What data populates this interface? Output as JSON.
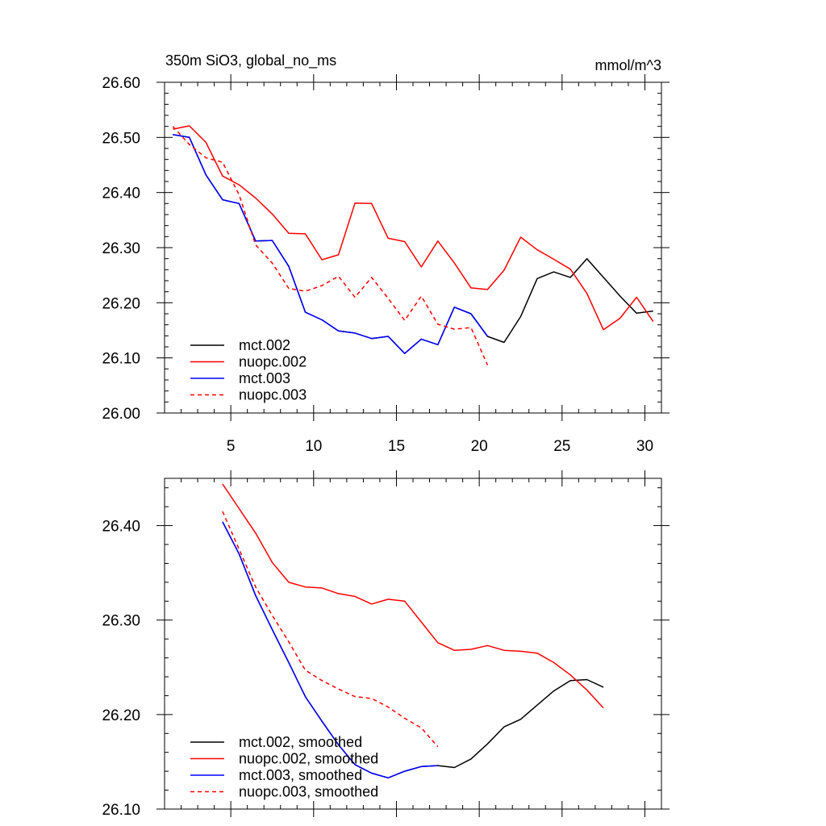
{
  "chart_data": [
    {
      "type": "line",
      "title": "350m SiO3, global_no_ms",
      "units": "mmol/m^3",
      "xlim": [
        1,
        31
      ],
      "ylim": [
        26.0,
        26.6
      ],
      "yticks": [
        "26.00",
        "26.10",
        "26.20",
        "26.30",
        "26.40",
        "26.50",
        "26.60"
      ],
      "xticks": [
        "5",
        "10",
        "15",
        "20",
        "25",
        "30"
      ],
      "legend_position": "bottom-left",
      "series": [
        {
          "name": "mct.002",
          "color": "#000000",
          "dash": "solid",
          "points": [
            [
              1.5,
              26.505
            ],
            [
              2.5,
              26.5
            ],
            [
              3.5,
              26.432
            ],
            [
              4.5,
              26.387
            ],
            [
              5.5,
              26.38
            ],
            [
              6.5,
              26.312
            ],
            [
              7.5,
              26.313
            ],
            [
              8.5,
              26.266
            ],
            [
              9.5,
              26.183
            ],
            [
              10.5,
              26.169
            ],
            [
              11.5,
              26.149
            ],
            [
              12.5,
              26.145
            ],
            [
              13.5,
              26.135
            ],
            [
              14.5,
              26.139
            ],
            [
              15.5,
              26.108
            ],
            [
              16.5,
              26.134
            ],
            [
              17.5,
              26.124
            ],
            [
              18.5,
              26.192
            ],
            [
              19.5,
              26.18
            ],
            [
              20.5,
              26.139
            ],
            [
              21.5,
              26.128
            ],
            [
              22.5,
              26.175
            ],
            [
              23.5,
              26.244
            ],
            [
              24.5,
              26.256
            ],
            [
              25.5,
              26.246
            ],
            [
              26.5,
              26.28
            ],
            [
              27.5,
              26.246
            ],
            [
              28.5,
              26.212
            ],
            [
              29.5,
              26.181
            ],
            [
              30.5,
              26.185
            ]
          ]
        },
        {
          "name": "nuopc.002",
          "color": "#ff0000",
          "dash": "solid",
          "points": [
            [
              1.5,
              26.515
            ],
            [
              2.5,
              26.521
            ],
            [
              3.5,
              26.491
            ],
            [
              4.5,
              26.43
            ],
            [
              5.5,
              26.414
            ],
            [
              6.5,
              26.39
            ],
            [
              7.5,
              26.361
            ],
            [
              8.5,
              26.326
            ],
            [
              9.5,
              26.325
            ],
            [
              10.5,
              26.278
            ],
            [
              11.5,
              26.287
            ],
            [
              12.5,
              26.381
            ],
            [
              13.5,
              26.38
            ],
            [
              14.5,
              26.317
            ],
            [
              15.5,
              26.311
            ],
            [
              16.5,
              26.265
            ],
            [
              17.5,
              26.312
            ],
            [
              18.5,
              26.272
            ],
            [
              19.5,
              26.227
            ],
            [
              20.5,
              26.224
            ],
            [
              21.5,
              26.259
            ],
            [
              22.5,
              26.319
            ],
            [
              23.5,
              26.296
            ],
            [
              24.5,
              26.279
            ],
            [
              25.5,
              26.261
            ],
            [
              26.5,
              26.217
            ],
            [
              27.5,
              26.151
            ],
            [
              28.5,
              26.172
            ],
            [
              29.5,
              26.21
            ],
            [
              30.5,
              26.166
            ]
          ]
        },
        {
          "name": "mct.003",
          "color": "#0000ff",
          "dash": "solid",
          "points": [
            [
              1.5,
              26.505
            ],
            [
              2.5,
              26.5
            ],
            [
              3.5,
              26.432
            ],
            [
              4.5,
              26.387
            ],
            [
              5.5,
              26.38
            ],
            [
              6.5,
              26.312
            ],
            [
              7.5,
              26.313
            ],
            [
              8.5,
              26.266
            ],
            [
              9.5,
              26.183
            ],
            [
              10.5,
              26.169
            ],
            [
              11.5,
              26.149
            ],
            [
              12.5,
              26.145
            ],
            [
              13.5,
              26.135
            ],
            [
              14.5,
              26.139
            ],
            [
              15.5,
              26.108
            ],
            [
              16.5,
              26.134
            ],
            [
              17.5,
              26.124
            ],
            [
              18.5,
              26.192
            ],
            [
              19.5,
              26.18
            ],
            [
              20.5,
              26.139
            ]
          ]
        },
        {
          "name": "nuopc.003",
          "color": "#ff0000",
          "dash": "dashed",
          "points": [
            [
              1.5,
              26.52
            ],
            [
              2.5,
              26.487
            ],
            [
              3.5,
              26.463
            ],
            [
              4.5,
              26.455
            ],
            [
              5.5,
              26.396
            ],
            [
              6.5,
              26.305
            ],
            [
              7.5,
              26.272
            ],
            [
              8.5,
              26.226
            ],
            [
              9.5,
              26.221
            ],
            [
              10.5,
              26.231
            ],
            [
              11.5,
              26.248
            ],
            [
              12.5,
              26.21
            ],
            [
              13.5,
              26.246
            ],
            [
              14.5,
              26.208
            ],
            [
              15.5,
              26.168
            ],
            [
              16.5,
              26.212
            ],
            [
              17.5,
              26.161
            ],
            [
              18.5,
              26.152
            ],
            [
              19.5,
              26.155
            ],
            [
              20.5,
              26.087
            ]
          ]
        }
      ]
    },
    {
      "type": "line",
      "xlim": [
        1,
        31
      ],
      "ylim": [
        26.1,
        26.45
      ],
      "yticks": [
        "26.10",
        "26.20",
        "26.30",
        "26.40"
      ],
      "legend_position": "bottom-left",
      "series": [
        {
          "name": "mct.002, smoothed",
          "color": "#000000",
          "dash": "solid",
          "points": [
            [
              4.5,
              26.404
            ],
            [
              5.5,
              26.37
            ],
            [
              6.5,
              26.326
            ],
            [
              7.5,
              26.29
            ],
            [
              8.5,
              26.255
            ],
            [
              9.5,
              26.219
            ],
            [
              10.5,
              26.193
            ],
            [
              11.5,
              26.168
            ],
            [
              12.5,
              26.147
            ],
            [
              13.5,
              26.138
            ],
            [
              14.5,
              26.133
            ],
            [
              15.5,
              26.14
            ],
            [
              16.5,
              26.145
            ],
            [
              17.5,
              26.146
            ],
            [
              18.5,
              26.144
            ],
            [
              19.5,
              26.153
            ],
            [
              20.5,
              26.169
            ],
            [
              21.5,
              26.187
            ],
            [
              22.5,
              26.195
            ],
            [
              23.5,
              26.21
            ],
            [
              24.5,
              26.225
            ],
            [
              25.5,
              26.236
            ],
            [
              26.5,
              26.237
            ],
            [
              27.5,
              26.229
            ]
          ]
        },
        {
          "name": "nuopc.002, smoothed",
          "color": "#ff0000",
          "dash": "solid",
          "points": [
            [
              4.5,
              26.444
            ],
            [
              5.5,
              26.418
            ],
            [
              6.5,
              26.392
            ],
            [
              7.5,
              26.361
            ],
            [
              8.5,
              26.34
            ],
            [
              9.5,
              26.335
            ],
            [
              10.5,
              26.334
            ],
            [
              11.5,
              26.328
            ],
            [
              12.5,
              26.325
            ],
            [
              13.5,
              26.317
            ],
            [
              14.5,
              26.322
            ],
            [
              15.5,
              26.32
            ],
            [
              16.5,
              26.298
            ],
            [
              17.5,
              26.276
            ],
            [
              18.5,
              26.268
            ],
            [
              19.5,
              26.269
            ],
            [
              20.5,
              26.273
            ],
            [
              21.5,
              26.268
            ],
            [
              22.5,
              26.267
            ],
            [
              23.5,
              26.265
            ],
            [
              24.5,
              26.255
            ],
            [
              25.5,
              26.242
            ],
            [
              26.5,
              26.226
            ],
            [
              27.5,
              26.207
            ]
          ]
        },
        {
          "name": "mct.003, smoothed",
          "color": "#0000ff",
          "dash": "solid",
          "points": [
            [
              4.5,
              26.404
            ],
            [
              5.5,
              26.37
            ],
            [
              6.5,
              26.326
            ],
            [
              7.5,
              26.29
            ],
            [
              8.5,
              26.255
            ],
            [
              9.5,
              26.219
            ],
            [
              10.5,
              26.193
            ],
            [
              11.5,
              26.168
            ],
            [
              12.5,
              26.147
            ],
            [
              13.5,
              26.138
            ],
            [
              14.5,
              26.133
            ],
            [
              15.5,
              26.14
            ],
            [
              16.5,
              26.145
            ],
            [
              17.5,
              26.146
            ]
          ]
        },
        {
          "name": "nuopc.003, smoothed",
          "color": "#ff0000",
          "dash": "dashed",
          "points": [
            [
              4.5,
              26.415
            ],
            [
              5.5,
              26.375
            ],
            [
              6.5,
              26.335
            ],
            [
              7.5,
              26.305
            ],
            [
              8.5,
              26.277
            ],
            [
              9.5,
              26.247
            ],
            [
              10.5,
              26.236
            ],
            [
              11.5,
              26.227
            ],
            [
              12.5,
              26.219
            ],
            [
              13.5,
              26.217
            ],
            [
              14.5,
              26.208
            ],
            [
              15.5,
              26.196
            ],
            [
              16.5,
              26.186
            ],
            [
              17.5,
              26.166
            ]
          ]
        }
      ]
    }
  ]
}
